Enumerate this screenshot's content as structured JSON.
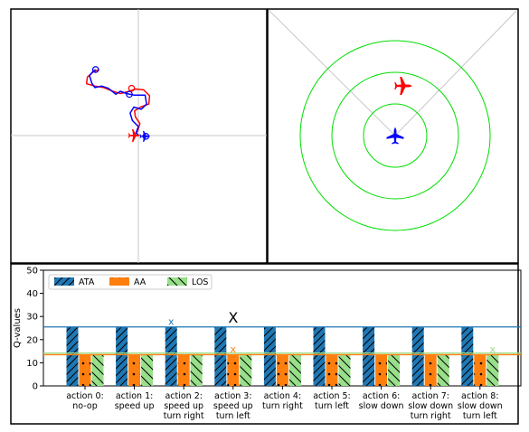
{
  "colors": {
    "ata": "#1f77b4",
    "aa": "#ff7f0e",
    "los": "#98df8a",
    "blue_aircraft": "#0000ff",
    "red_aircraft": "#ff0000",
    "rings": "#00dd00",
    "crosshair": "#c8c8c8",
    "frame": "#000000"
  },
  "panels": {
    "trajectory": {
      "blue_path": [
        [
          0,
          0
        ],
        [
          -0.3,
          -0.4
        ],
        [
          0,
          -1.2
        ],
        [
          -0.8,
          -2.0
        ],
        [
          -1.1,
          -3.0
        ],
        [
          -0.6,
          -3.8
        ],
        [
          0.4,
          -3.5
        ],
        [
          1.1,
          -4.2
        ],
        [
          0.9,
          -5.4
        ],
        [
          -0.6,
          -5.4
        ],
        [
          -1.6,
          -5.6
        ],
        [
          -2.4,
          -5.9
        ],
        [
          -3.0,
          -5.5
        ],
        [
          -4.0,
          -6.3
        ],
        [
          -4.9,
          -6.6
        ],
        [
          -5.8,
          -6.4
        ],
        [
          -6.2,
          -7.0
        ],
        [
          -6.5,
          -8.0
        ],
        [
          -6.0,
          -8.6
        ],
        [
          -5.7,
          -8.8
        ]
      ],
      "red_path": [
        [
          -0.6,
          0
        ],
        [
          -0.1,
          -0.6
        ],
        [
          0.2,
          -1.6
        ],
        [
          -0.4,
          -2.5
        ],
        [
          -0.5,
          -3.3
        ],
        [
          0.3,
          -3.8
        ],
        [
          1.4,
          -4.2
        ],
        [
          1.5,
          -5.3
        ],
        [
          0.7,
          -6.1
        ],
        [
          -0.4,
          -6.2
        ],
        [
          -1.2,
          -5.9
        ],
        [
          -2.4,
          -5.6
        ],
        [
          -3.4,
          -5.9
        ],
        [
          -4.6,
          -6.4
        ],
        [
          -5.8,
          -6.6
        ],
        [
          -6.9,
          -6.9
        ],
        [
          -6.8,
          -7.8
        ],
        [
          -6.0,
          -8.5
        ],
        [
          -5.2,
          -8.8
        ]
      ],
      "blue_markers": [
        [
          -5.7,
          -8.8
        ],
        [
          -1.2,
          -5.5
        ],
        [
          1.0,
          0.1
        ]
      ],
      "red_markers": [
        [
          -0.9,
          -6.3
        ]
      ],
      "red_aircraft_position": [
        -0.5,
        0
      ],
      "blue_aircraft_position": [
        0.9,
        0.1
      ]
    },
    "radar": {
      "rings": 3,
      "red_aircraft_position": [
        0.15,
        -1.0
      ],
      "blue_aircraft_position": [
        0,
        0
      ]
    }
  },
  "chart_data": {
    "type": "bar",
    "ylabel": "Q-values",
    "ylim": [
      0,
      50
    ],
    "yticks": [
      0,
      10,
      20,
      30,
      40,
      50
    ],
    "categories": [
      [
        "action 0:",
        "no-op"
      ],
      [
        "action 1:",
        "speed up"
      ],
      [
        "action 2:",
        "speed up",
        "turn right"
      ],
      [
        "action 3:",
        "speed up",
        "turn left"
      ],
      [
        "action 4:",
        "turn right"
      ],
      [
        "action 5:",
        "turn left"
      ],
      [
        "action 6:",
        "slow down"
      ],
      [
        "action 7:",
        "slow down",
        "turn right"
      ],
      [
        "action 8:",
        "slow down",
        "turn left"
      ]
    ],
    "series": [
      {
        "name": "ATA",
        "values": [
          25.5,
          25.5,
          25.5,
          25.5,
          25.5,
          25.5,
          25.5,
          25.5,
          25.5
        ]
      },
      {
        "name": "AA",
        "values": [
          13.5,
          13.5,
          13.5,
          13.5,
          13.5,
          13.5,
          13.5,
          13.5,
          13.5
        ]
      },
      {
        "name": "LOS",
        "values": [
          13.5,
          13.5,
          13.5,
          13.5,
          13.5,
          13.5,
          13.5,
          13.5,
          13.5
        ]
      }
    ],
    "reference_lines": [
      {
        "series": "ATA",
        "y": 25.5
      },
      {
        "series": "AA",
        "y": 13.5
      },
      {
        "series": "LOS",
        "y": 14.2
      }
    ],
    "markers": [
      {
        "label": "x",
        "series": "ATA",
        "category_index": 2,
        "y": 28
      },
      {
        "label": "X",
        "series": "total",
        "category_index": 3,
        "y": 30
      },
      {
        "label": "x",
        "series": "AA",
        "category_index": 3,
        "y": 16
      },
      {
        "label": "x",
        "series": "LOS",
        "category_index": 8,
        "y": 16
      }
    ],
    "legend_position": "top-left",
    "grid": false
  }
}
